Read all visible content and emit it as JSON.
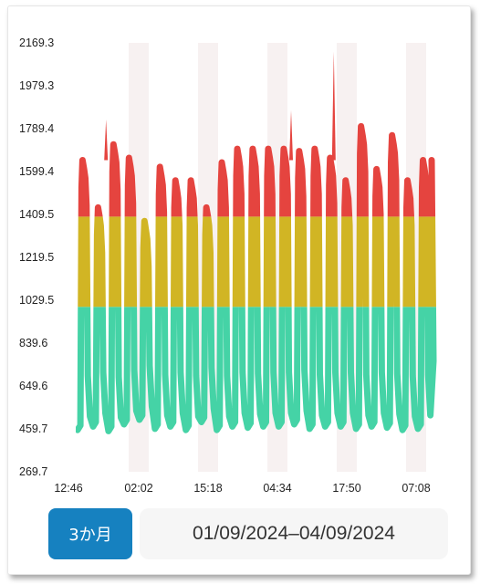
{
  "chart_data": {
    "type": "area",
    "y_ticks": [
      "2169.3",
      "1979.3",
      "1789.4",
      "1599.4",
      "1409.5",
      "1219.5",
      "1029.5",
      "839.6",
      "649.6",
      "459.7",
      "269.7"
    ],
    "ylim": [
      269.7,
      2169.3
    ],
    "x_ticks": [
      "12:46",
      "02:02",
      "15:18",
      "04:34",
      "17:50",
      "07:08"
    ],
    "zones": [
      {
        "from": 269.7,
        "to": 1000,
        "color": "#45d3a6"
      },
      {
        "from": 1000,
        "to": 1400,
        "color": "#d1b524"
      },
      {
        "from": 1400,
        "to": 2169.3,
        "color": "#e5443f"
      }
    ],
    "cycles": [
      {
        "low": 455,
        "high": 1650
      },
      {
        "low": 470,
        "high": 1440
      },
      {
        "low": 450,
        "high": 1720
      },
      {
        "low": 480,
        "high": 1660
      },
      {
        "low": 500,
        "high": 1380
      },
      {
        "low": 460,
        "high": 1620
      },
      {
        "low": 470,
        "high": 1560
      },
      {
        "low": 455,
        "high": 1560
      },
      {
        "low": 490,
        "high": 1440
      },
      {
        "low": 455,
        "high": 1640
      },
      {
        "low": 470,
        "high": 1700
      },
      {
        "low": 465,
        "high": 1700
      },
      {
        "low": 470,
        "high": 1700
      },
      {
        "low": 470,
        "high": 1700
      },
      {
        "low": 480,
        "high": 1690
      },
      {
        "low": 460,
        "high": 1700
      },
      {
        "low": 470,
        "high": 1660
      },
      {
        "low": 470,
        "high": 1560
      },
      {
        "low": 460,
        "high": 1800
      },
      {
        "low": 470,
        "high": 1610
      },
      {
        "low": 465,
        "high": 1760
      },
      {
        "low": 455,
        "high": 1560
      },
      {
        "low": 460,
        "high": 1650
      }
    ],
    "spikes": [
      {
        "x_frac": 0.72,
        "value": 2130
      },
      {
        "x_frac": 0.08,
        "value": 1830
      },
      {
        "x_frac": 0.6,
        "value": 1870
      }
    ],
    "colors": {
      "band": "#f7f1f1",
      "green": "#45d3a6",
      "yellow": "#d1b524",
      "red": "#e5443f"
    }
  },
  "controls": {
    "range_button": "3か月",
    "date_range": "01/09/2024–04/09/2024"
  }
}
